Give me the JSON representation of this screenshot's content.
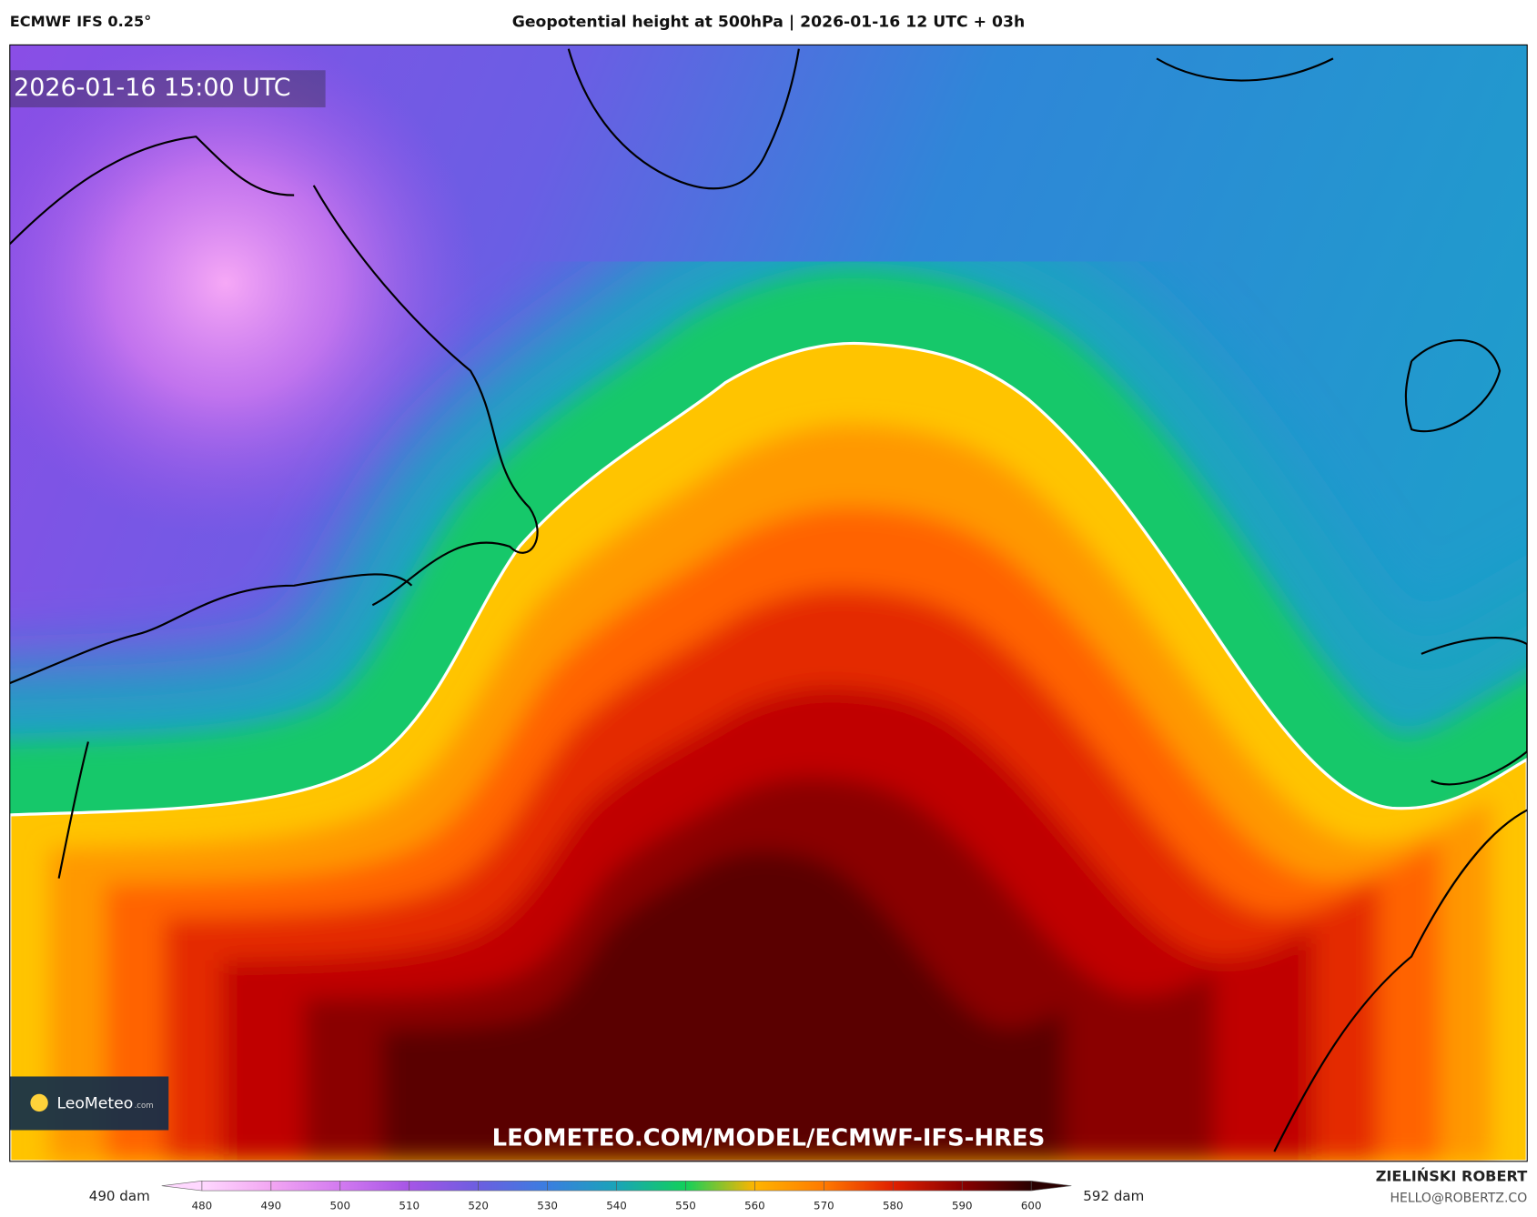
{
  "header": {
    "model": "ECMWF IFS 0.25°",
    "title": "Geopotential height at 500hPa | 2026-01-16 12 UTC + 03h"
  },
  "map": {
    "valid_time": "2026-01-16 15:00 UTC",
    "logo": "LeoMeteo",
    "logo_suffix": ".com",
    "watermark": "LEOMETEO.COM/MODEL/ECMWF-IFS-HRES"
  },
  "colorbar": {
    "min_label": "490 dam",
    "max_label": "592 dam",
    "ticks": [
      480,
      490,
      500,
      510,
      520,
      530,
      540,
      550,
      560,
      570,
      580,
      590,
      600
    ],
    "colors": [
      "#ffd8ff",
      "#f2a6f2",
      "#d27af0",
      "#a655e6",
      "#6c5ee0",
      "#3a7ee0",
      "#1aa4b8",
      "#12d05a",
      "#ffb400",
      "#ff7a00",
      "#e02000",
      "#8a0000",
      "#2a0000"
    ]
  },
  "footer": {
    "author": "ZIELIŃSKI ROBERT",
    "email": "HELLO@ROBERTZ.CO"
  }
}
